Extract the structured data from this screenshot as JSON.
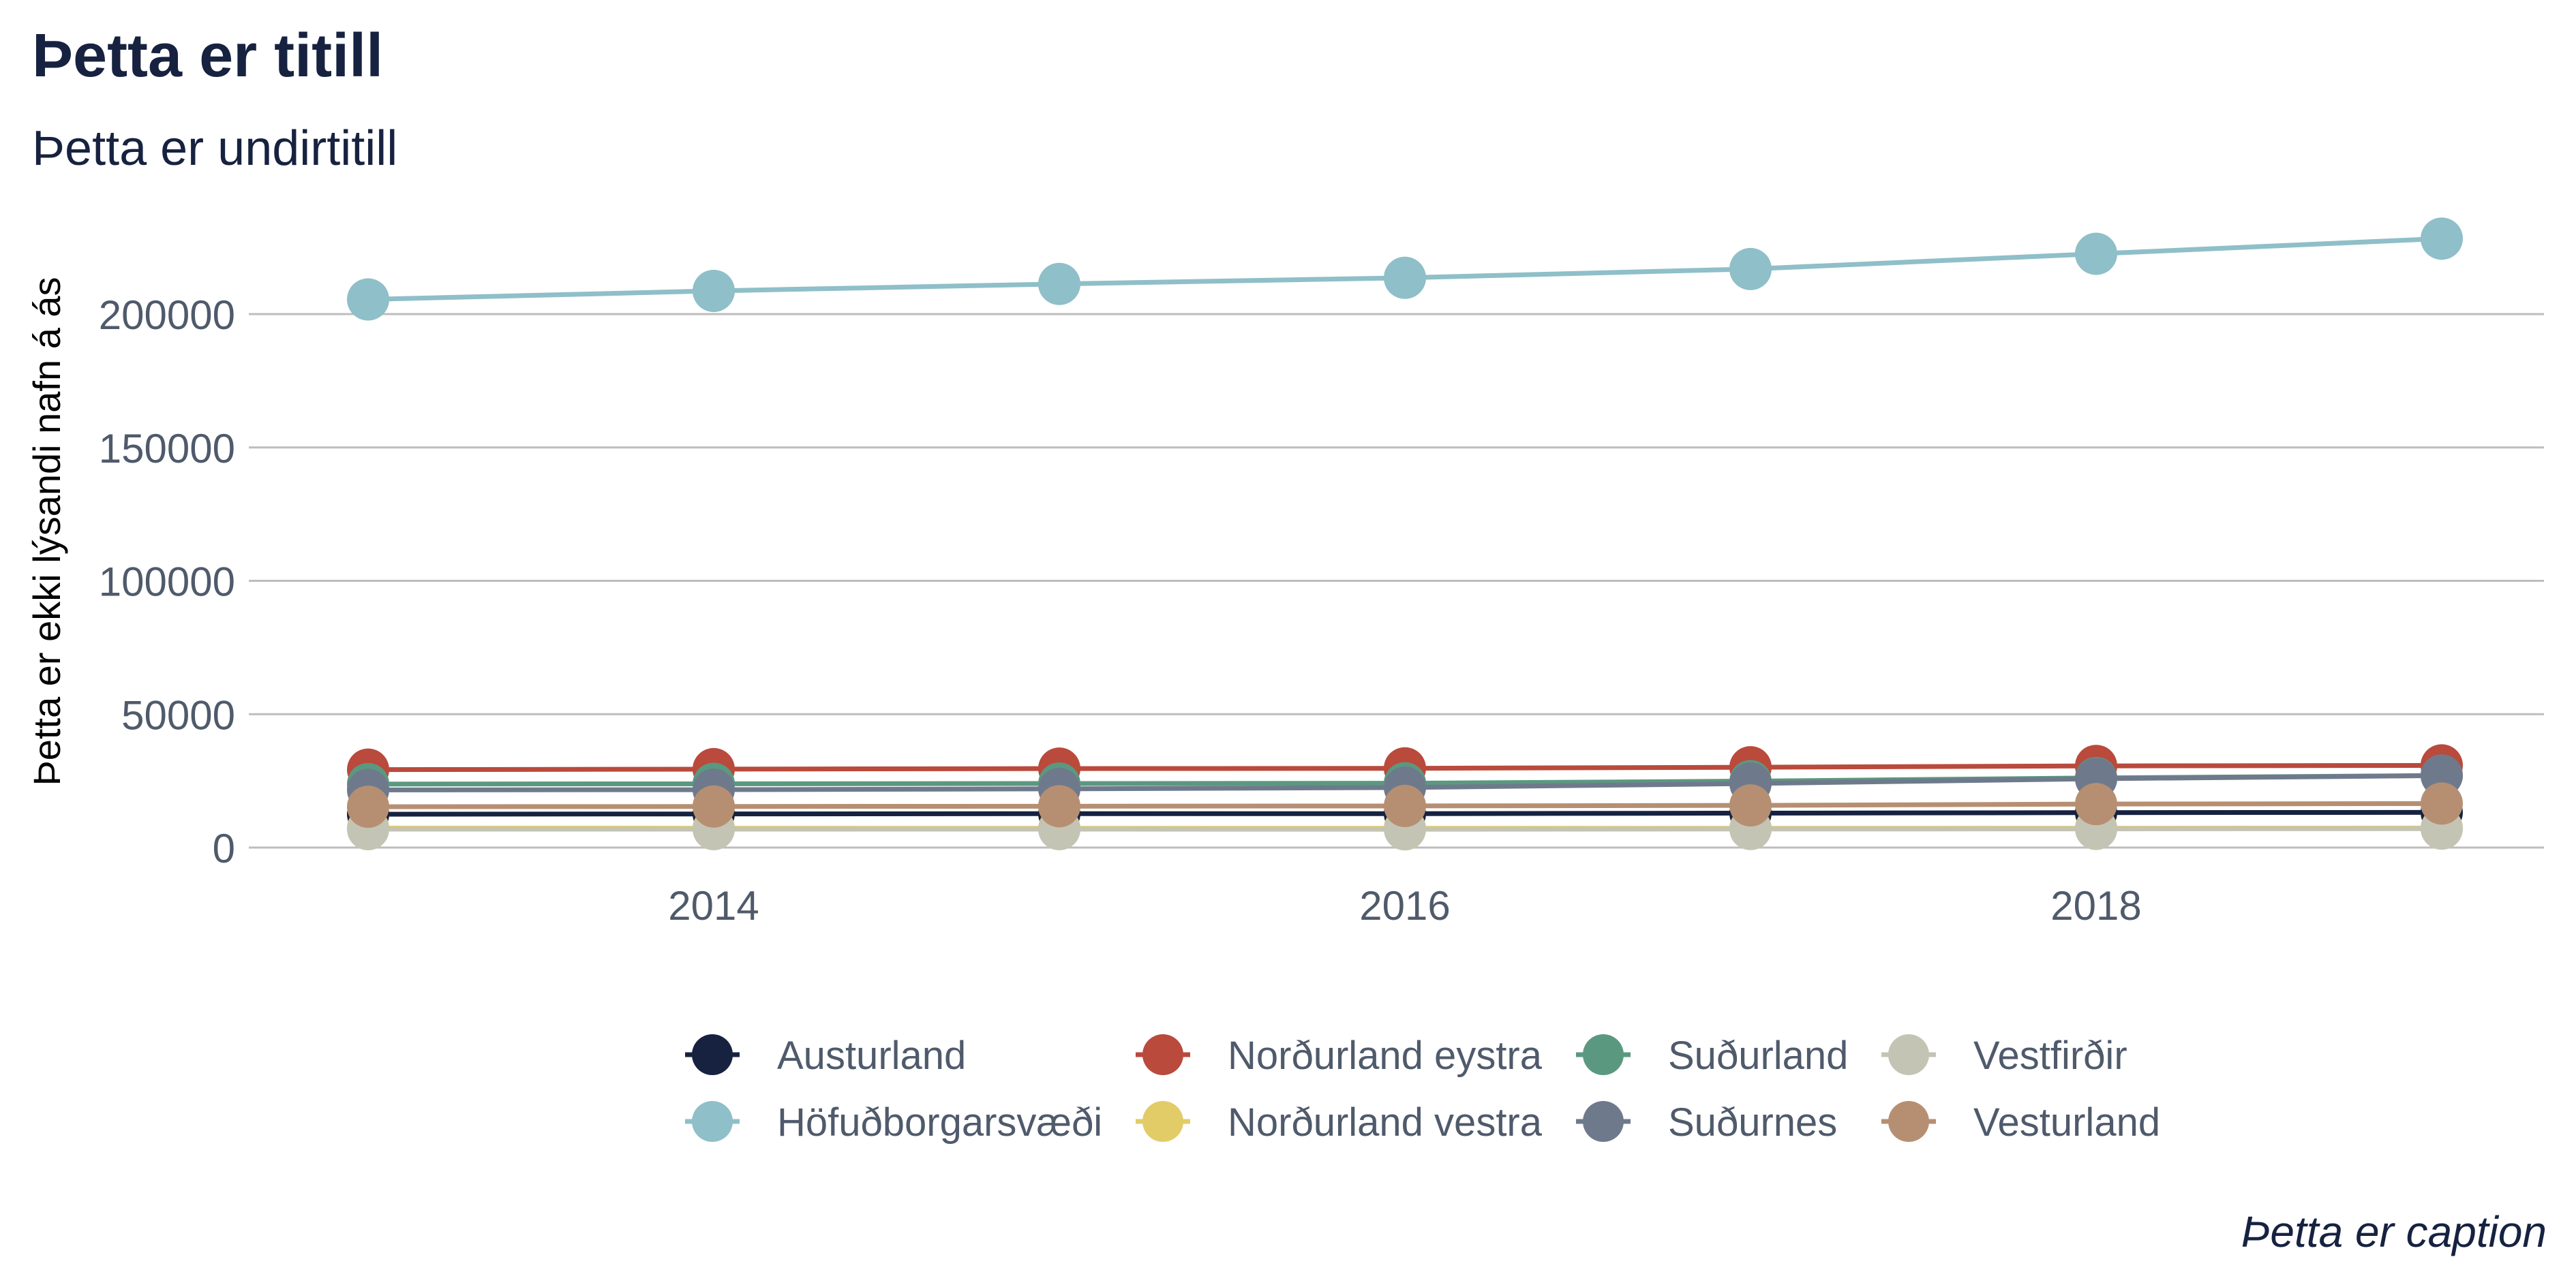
{
  "chart_data": {
    "type": "line",
    "title": "Þetta er titill",
    "subtitle": "Þetta er undirtitill",
    "xlabel": "",
    "ylabel": "Þetta er ekki lýsandi nafn á ás",
    "caption": "Þetta er caption",
    "x": [
      2013,
      2014,
      2015,
      2016,
      2017,
      2018,
      2019
    ],
    "x_ticks": [
      2014,
      2016,
      2018
    ],
    "x_tick_labels": [
      "2014",
      "2016",
      "2018"
    ],
    "xlim": [
      2013,
      2019
    ],
    "y_ticks": [
      0,
      50000,
      100000,
      150000,
      200000
    ],
    "y_tick_labels": [
      "0",
      "50000",
      "100000",
      "150000",
      "200000"
    ],
    "ylim": [
      0,
      230000
    ],
    "grid": "horizontal",
    "legend_position": "bottom",
    "series": [
      {
        "name": "Austurland",
        "color": "#162240",
        "values": [
          12500,
          12600,
          12700,
          12700,
          12900,
          13100,
          13200
        ]
      },
      {
        "name": "Höfuðborgarsvæði",
        "color": "#8fbfc8",
        "values": [
          205500,
          208700,
          211300,
          213600,
          216900,
          222600,
          228300
        ]
      },
      {
        "name": "Norðurland eystra",
        "color": "#b94a3c",
        "values": [
          29200,
          29400,
          29600,
          29700,
          30100,
          30600,
          30800
        ]
      },
      {
        "name": "Norðurland vestra",
        "color": "#e2cc67",
        "values": [
          7300,
          7250,
          7200,
          7200,
          7200,
          7250,
          7300
        ]
      },
      {
        "name": "Suðurland",
        "color": "#5b9880",
        "values": [
          23800,
          23900,
          24000,
          24100,
          24900,
          26100,
          27000
        ]
      },
      {
        "name": "Suðurnes",
        "color": "#6e7a8c",
        "values": [
          21600,
          21700,
          22000,
          22500,
          24000,
          25800,
          27000
        ]
      },
      {
        "name": "Vestfirðir",
        "color": "#c4c4b4",
        "values": [
          6900,
          6900,
          6900,
          6850,
          6950,
          7000,
          7100
        ]
      },
      {
        "name": "Vesturland",
        "color": "#b68f72",
        "values": [
          15300,
          15400,
          15500,
          15600,
          15800,
          16300,
          16500
        ]
      }
    ],
    "legend_order": [
      "Austurland",
      "Höfuðborgarsvæði",
      "Norðurland eystra",
      "Norðurland vestra",
      "Suðurland",
      "Suðurnes",
      "Vestfirðir",
      "Vesturland"
    ]
  }
}
